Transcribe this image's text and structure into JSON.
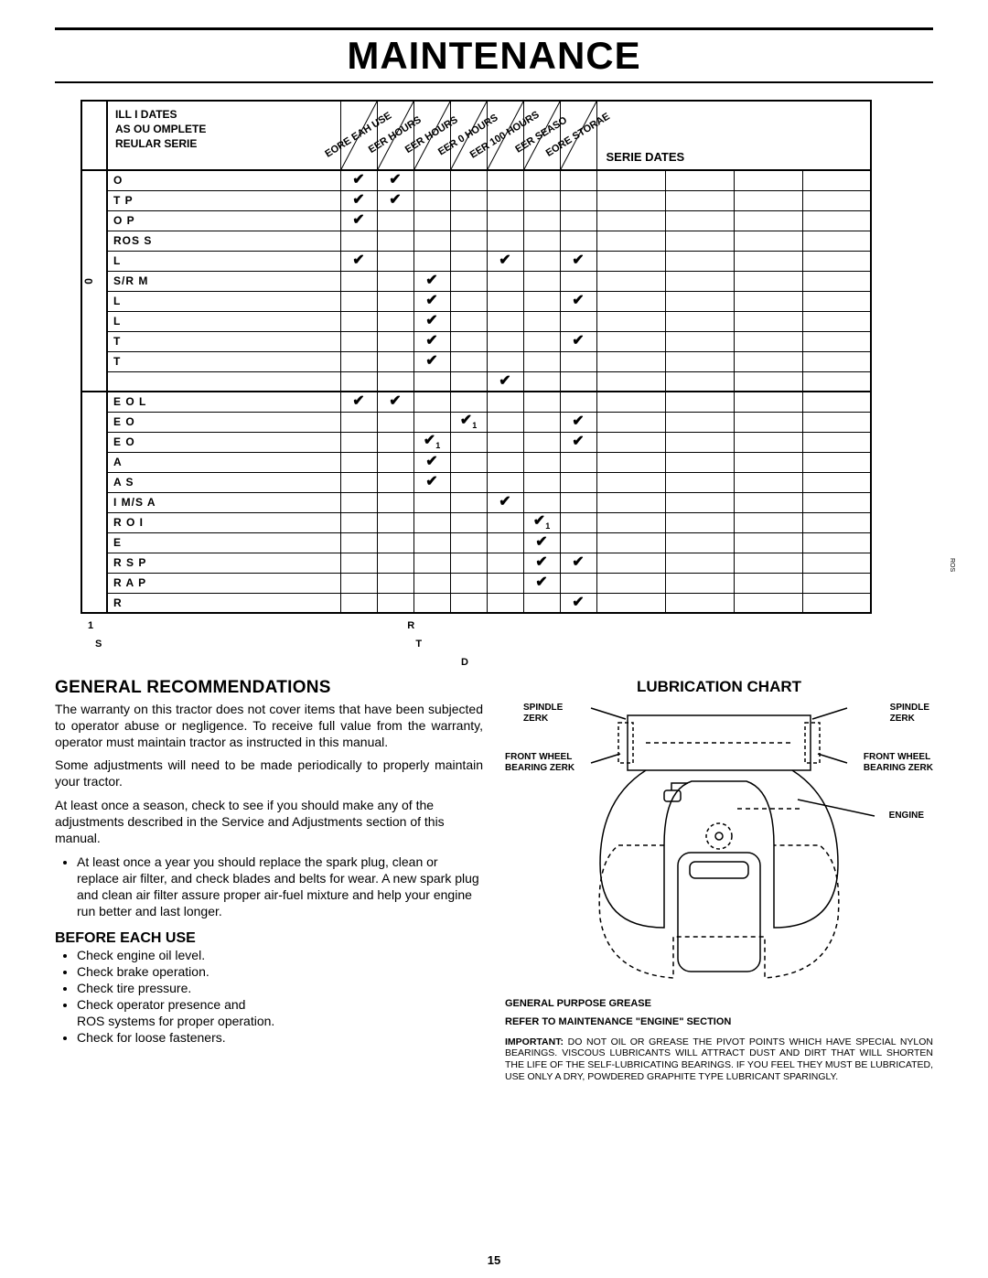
{
  "page": {
    "title": "MAINTENANCE",
    "number": "15"
  },
  "table": {
    "header_text": "ILL I DATES\nAS OU OMPLETE\nREULAR SERIE",
    "serie_label": "SERIE DATES",
    "diag_labels": [
      "EORE EAH USE",
      "EER  HOURS",
      "EER  HOURS",
      "EER 0 HOURS",
      "EER 100 HOURS",
      "EER SEASO",
      "EORE STORAE"
    ],
    "section1_label": "0",
    "rows1": [
      {
        "task": "O",
        "marks": [
          "✔",
          "✔",
          "",
          "",
          "",
          "",
          ""
        ]
      },
      {
        "task": "T P",
        "marks": [
          "✔",
          "✔",
          "",
          "",
          "",
          "",
          ""
        ]
      },
      {
        "task": "O P",
        "marks": [
          "✔",
          "",
          "",
          "",
          "",
          "",
          ""
        ]
      },
      {
        "task": "ROS S",
        "marks": [
          "",
          "",
          "",
          "",
          "",
          "",
          ""
        ]
      },
      {
        "task": " L",
        "marks": [
          "✔",
          "",
          "",
          "",
          "✔",
          "",
          "✔"
        ]
      },
      {
        "task": "S/R M",
        "marks": [
          "",
          "",
          "✔",
          "",
          "",
          "",
          ""
        ]
      },
      {
        "task": "L",
        "marks": [
          "",
          "",
          "✔",
          "",
          "",
          "",
          "✔"
        ]
      },
      {
        "task": " L",
        "marks": [
          "",
          "",
          "✔",
          "",
          "",
          "",
          ""
        ]
      },
      {
        "task": " T",
        "marks": [
          "",
          "",
          "✔",
          "",
          "",
          "",
          "✔"
        ]
      },
      {
        "task": "T",
        "marks": [
          "",
          "",
          "✔",
          "",
          "",
          "",
          ""
        ]
      },
      {
        "task": "",
        "marks": [
          "",
          "",
          "",
          "",
          "✔",
          "",
          ""
        ]
      }
    ],
    "rows2": [
      {
        "task": " E O L",
        "marks": [
          "✔",
          "✔",
          "",
          "",
          "",
          "",
          ""
        ]
      },
      {
        "task": " E O",
        "marks": [
          "",
          "",
          "",
          "✔",
          "",
          "",
          "✔"
        ],
        "sub": [
          0,
          0,
          0,
          1,
          0,
          0,
          0
        ]
      },
      {
        "task": " E O",
        "marks": [
          "",
          "",
          "✔",
          "",
          "",
          "",
          "✔"
        ],
        "sub": [
          0,
          0,
          1,
          0,
          0,
          0,
          0
        ]
      },
      {
        "task": " A",
        "marks": [
          "",
          "",
          "✔",
          "",
          "",
          "",
          ""
        ]
      },
      {
        "task": " A S",
        "marks": [
          "",
          "",
          "✔",
          "",
          "",
          "",
          ""
        ]
      },
      {
        "task": "I M/S A",
        "marks": [
          "",
          "",
          "",
          "",
          "✔",
          "",
          ""
        ]
      },
      {
        "task": "R  O  I",
        "marks": [
          "",
          "",
          "",
          "",
          "",
          "✔",
          ""
        ],
        "sub": [
          0,
          0,
          0,
          0,
          0,
          1,
          0
        ]
      },
      {
        "task": " E",
        "marks": [
          "",
          "",
          "",
          "",
          "",
          "✔",
          ""
        ]
      },
      {
        "task": "R S P",
        "marks": [
          "",
          "",
          "",
          "",
          "",
          "✔",
          "✔"
        ]
      },
      {
        "task": "R  A  P",
        "marks": [
          "",
          "",
          "",
          "",
          "",
          "✔",
          ""
        ]
      },
      {
        "task": "R",
        "marks": [
          "",
          "",
          "",
          "",
          "",
          "",
          "✔"
        ]
      }
    ],
    "footnote_left_1": "1",
    "footnote_left_2": "S",
    "footnote_right_1": "R",
    "footnote_right_2": "T",
    "footnote_right_3": "D"
  },
  "left_col": {
    "h2": "GENERAL RECOMMENDATIONS",
    "p1": "The warranty on this tractor does not cover items that have been subjected to operator abuse or negligence. To receive full value from the warranty, operator must maintain tractor as instructed in this manual.",
    "p2": "Some adjustments will need to be made periodically to properly maintain your tractor.",
    "p3": "At least once a season, check to see if you should make any of the adjustments described in the Service and Adjustments section of this manual.",
    "bullet1": "At least once a year you should replace the spark plug, clean or replace air filter, and check blades and belts for wear.  A new spark plug and clean air filter assure proper air-fuel mixture and help your engine run better and last longer.",
    "h3": "BEFORE EACH USE",
    "checks": [
      "Check engine oil level.",
      "Check brake operation.",
      "Check tire pressure.",
      "Check operator presence and",
      "ROS systems for proper operation.",
      "Check for loose fasteners."
    ]
  },
  "right_col": {
    "title": "LUBRICATION CHART",
    "labels": {
      "spindle_l": "SPINDLE\nZERK",
      "spindle_r": "SPINDLE\nZERK",
      "wheel_l": "FRONT WHEEL\nBEARING  ZERK",
      "wheel_r": "FRONT WHEEL\nBEARING  ZERK",
      "engine": "ENGINE"
    },
    "caption1": "GENERAL PURPOSE GREASE",
    "caption2": "REFER TO MAINTENANCE  \"ENGINE\" SECTION",
    "important": "IMPORTANT:  DO NOT OIL OR GREASE THE PIVOT POINTS WHICH HAVE SPECIAL NYLON BEARINGS.  VISCOUS LUBRICANTS WILL ATTRACT DUST AND DIRT THAT WILL SHORTEN THE LIFE OF THE SELF-LUBRICATING BEARINGS.  IF YOU FEEL THEY MUST BE LUBRI­CATED, USE ONLY A DRY, POWDERED GRAPHITE TYPE LUBRICANT SPARINGLY."
  },
  "side_label": "ROS"
}
